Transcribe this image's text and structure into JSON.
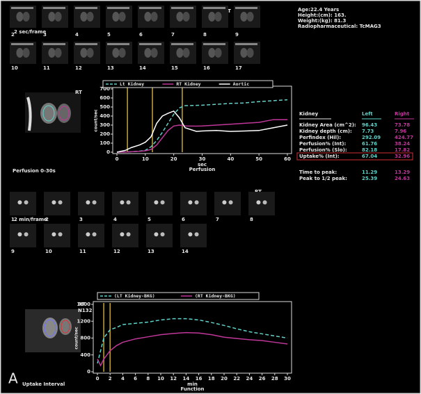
{
  "info": [
    "Age:22.4 Years",
    "Height:(cm): 163.",
    "Weight:(kg): 81.3",
    "Radiopharmaceutical: TcMAG3"
  ],
  "frames": {
    "top": {
      "rate": "2 sec/frame",
      "orientation": "RT",
      "rows": [
        [
          "2",
          "3",
          "4",
          "5",
          "6",
          "7",
          "8",
          "9"
        ],
        [
          "10",
          "11",
          "12",
          "13",
          "14",
          "15",
          "16",
          "17"
        ]
      ]
    },
    "bottom": {
      "rate": "2 min/frame",
      "orientation": "RT",
      "rows": [
        [
          "1",
          "2",
          "3",
          "4",
          "5",
          "6",
          "7",
          "8"
        ],
        [
          "9",
          "10",
          "11",
          "12",
          "13",
          "14"
        ]
      ]
    }
  },
  "perfusion_label": "Perfusion 0-30s",
  "roi_top": {
    "orientation": "RT"
  },
  "roi_bottom": {
    "orientation": "RT",
    "id": "N132"
  },
  "panel_letter": "A",
  "uptake_label": "Uptake Interval",
  "table": {
    "header": [
      "Kidney",
      "Left",
      "Right"
    ],
    "rows": [
      [
        "Kidney Area (cm^2):",
        "96.43",
        "73.78"
      ],
      [
        "Kidney depth (cm):",
        "7.73",
        "7.96"
      ],
      [
        "Perfindex (Hil):",
        "292.09",
        "424.77"
      ],
      [
        "Perfusion% (Int):",
        "61.76",
        "38.24"
      ],
      [
        "Perfusion% (Slo):",
        "82.18",
        "17.82"
      ],
      [
        "Uptake% (Int):",
        "67.04",
        "32.96"
      ]
    ],
    "highlight_row": 5,
    "extra_rows": [
      [
        "Time to peak:",
        "11.29",
        "13.29"
      ],
      [
        "Peak to 1/2 peak:",
        "25.39",
        "24.63"
      ]
    ]
  },
  "chart_data": [
    {
      "type": "line",
      "xlabel": "sec",
      "ylabel": "count/sec",
      "caption": "Perfusion",
      "x": [
        0,
        3,
        5,
        8,
        10,
        12,
        14,
        16,
        18,
        20,
        22,
        24,
        28,
        30,
        35,
        40,
        45,
        50,
        55,
        60
      ],
      "series": [
        {
          "name": "Lt Kidney",
          "color": "#5fd3c9",
          "style": "dashed",
          "values": [
            0,
            2,
            5,
            12,
            20,
            60,
            130,
            220,
            320,
            420,
            490,
            515,
            518,
            520,
            530,
            540,
            545,
            560,
            570,
            580
          ]
        },
        {
          "name": "RT Kidney",
          "color": "#c0379a",
          "style": "solid",
          "values": [
            0,
            2,
            5,
            10,
            15,
            30,
            80,
            160,
            240,
            290,
            300,
            290,
            288,
            290,
            300,
            310,
            320,
            330,
            360,
            360
          ]
        },
        {
          "name": "Aortic",
          "color": "#ffffff",
          "style": "solid",
          "values": [
            0,
            20,
            50,
            80,
            110,
            170,
            320,
            400,
            430,
            455,
            380,
            270,
            230,
            235,
            240,
            230,
            235,
            240,
            270,
            300
          ]
        }
      ],
      "markers": [
        3.7,
        12.5,
        23
      ],
      "marker_color": "#c8a830",
      "xlim": [
        0,
        60
      ],
      "xticks": [
        0,
        10,
        20,
        30,
        40,
        50,
        60
      ],
      "ylim": [
        0,
        700
      ],
      "yticks": [
        0,
        100,
        200,
        300,
        400,
        500,
        600,
        700
      ]
    },
    {
      "type": "line",
      "xlabel": "min",
      "ylabel": "count/sec",
      "caption": "Function",
      "x": [
        0,
        0.5,
        1,
        2,
        3,
        4,
        6,
        8,
        10,
        12,
        14,
        16,
        18,
        20,
        22,
        24,
        26,
        28,
        30
      ],
      "series": [
        {
          "name": "(LT Kidney-BKG)",
          "color": "#5fd3c9",
          "style": "dashed",
          "values": [
            200,
            500,
            800,
            1000,
            1050,
            1120,
            1150,
            1180,
            1230,
            1260,
            1260,
            1230,
            1170,
            1100,
            1020,
            950,
            900,
            850,
            800
          ]
        },
        {
          "name": "(RT Kidney-BKG)",
          "color": "#c0379a",
          "style": "solid",
          "values": [
            300,
            150,
            300,
            500,
            620,
            700,
            780,
            830,
            880,
            910,
            930,
            920,
            880,
            820,
            790,
            760,
            740,
            700,
            660
          ]
        }
      ],
      "markers": [
        1,
        2
      ],
      "marker_color": "#c8a830",
      "xlim": [
        0,
        30
      ],
      "xticks": [
        0,
        2,
        4,
        6,
        8,
        10,
        12,
        14,
        16,
        18,
        20,
        22,
        24,
        26,
        28,
        30
      ],
      "ylim": [
        0,
        1600
      ],
      "yticks": [
        0,
        400,
        800,
        1200,
        1600
      ]
    }
  ]
}
